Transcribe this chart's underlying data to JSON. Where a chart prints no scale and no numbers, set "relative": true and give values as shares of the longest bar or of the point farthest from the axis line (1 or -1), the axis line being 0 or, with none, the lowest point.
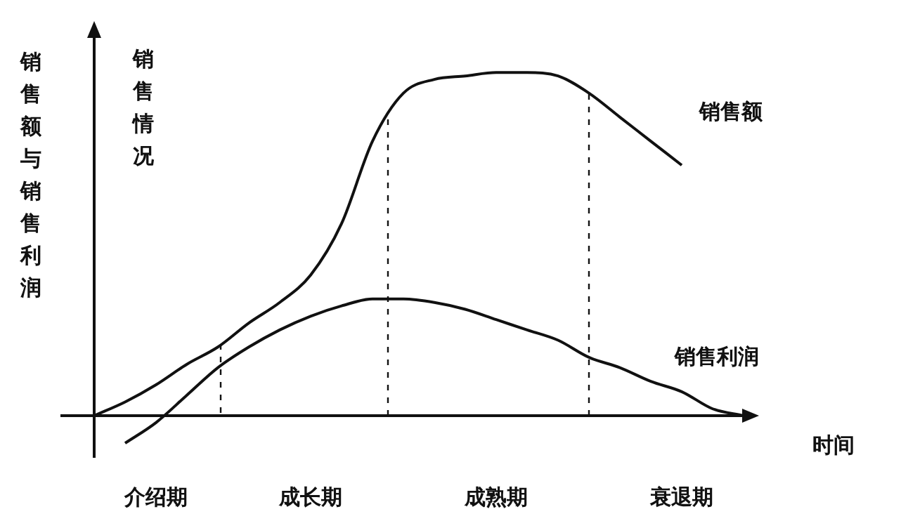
{
  "chart_data": {
    "type": "line",
    "relative": true,
    "ylabel": "销售额与销售利润",
    "xlabel": "时间",
    "annotations": [
      "销售情况"
    ],
    "categories": [
      null,
      null,
      "介绍期",
      null,
      null,
      null,
      null,
      "成长期",
      null,
      null,
      null,
      null,
      null,
      "成熟期",
      null,
      null,
      null,
      null,
      null,
      "衰退期",
      null,
      null
    ],
    "marker": "none",
    "line_style": "solid",
    "series": [
      {
        "name": "销售额",
        "color": "#111111",
        "values": [
          0,
          0.04,
          0.09,
          0.15,
          0.2,
          0.27,
          0.33,
          0.41,
          0.56,
          0.8,
          0.94,
          0.98,
          0.99,
          1,
          1,
          0.99,
          0.94,
          0.87,
          0.8,
          0.73,
          null,
          null
        ]
      },
      {
        "name": "销售利润",
        "color": "#111111",
        "values": [
          null,
          -0.08,
          -0.02,
          0.06,
          0.14,
          0.2,
          0.25,
          0.29,
          0.32,
          0.34,
          0.34,
          0.33,
          0.31,
          0.28,
          0.25,
          0.22,
          0.17,
          0.14,
          0.1,
          0.07,
          0.02,
          0
        ]
      }
    ]
  }
}
